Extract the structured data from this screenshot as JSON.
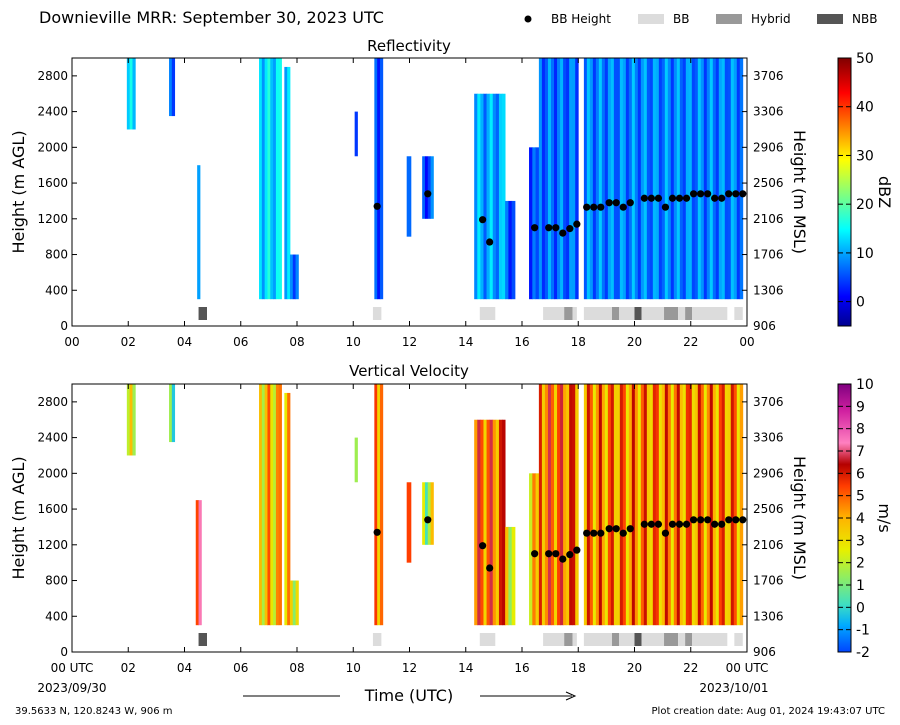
{
  "header": {
    "title": "Downieville MRR:  September 30, 2023 UTC",
    "legend": [
      {
        "label": "BB Height",
        "kind": "dot",
        "color": "#000000"
      },
      {
        "label": "BB",
        "kind": "box",
        "color": "#dcdcdc"
      },
      {
        "label": "Hybrid",
        "kind": "box",
        "color": "#999999"
      },
      {
        "label": "NBB",
        "kind": "box",
        "color": "#555555"
      }
    ]
  },
  "footer": {
    "location": "39.5633 N, 120.8243 W, 906 m",
    "creation": "Plot creation date: Aug 01, 2024 19:43:07 UTC",
    "start_date": "2023/09/30",
    "end_date": "2023/10/01"
  },
  "chart_data": [
    {
      "type": "heatmap",
      "title": "Reflectivity",
      "xlabel": "Time (UTC)",
      "ylabel": "Height (m AGL)",
      "y2label": "Height (m MSL)",
      "xlim": [
        0,
        24
      ],
      "ylim": [
        0,
        3000
      ],
      "x_ticks": [
        "00",
        "02",
        "04",
        "06",
        "08",
        "10",
        "12",
        "14",
        "16",
        "18",
        "20",
        "22",
        "00"
      ],
      "y_ticks": [
        0,
        400,
        800,
        1200,
        1600,
        2000,
        2400,
        2800
      ],
      "y2_ticks": [
        906,
        1306,
        1706,
        2106,
        2506,
        2906,
        3306,
        3706
      ],
      "colorbar": {
        "label": "dBZ",
        "range": [
          -5,
          50
        ],
        "ticks": [
          0,
          10,
          20,
          30,
          40,
          50
        ]
      },
      "echo_segments": [
        {
          "t0": 1.95,
          "t1": 2.25,
          "ybot": 2200,
          "ytop": 3000,
          "val": 12
        },
        {
          "t0": 3.45,
          "t1": 3.65,
          "ybot": 2350,
          "ytop": 3000,
          "val": 8
        },
        {
          "t0": 4.45,
          "t1": 4.55,
          "ybot": 300,
          "ytop": 1800,
          "val": 10
        },
        {
          "t0": 6.65,
          "t1": 7.45,
          "ybot": 300,
          "ytop": 3000,
          "val": 13
        },
        {
          "t0": 7.55,
          "t1": 7.75,
          "ybot": 300,
          "ytop": 2900,
          "val": 10
        },
        {
          "t0": 7.75,
          "t1": 8.05,
          "ybot": 300,
          "ytop": 800,
          "val": 8
        },
        {
          "t0": 10.05,
          "t1": 10.15,
          "ybot": 1900,
          "ytop": 2400,
          "val": 5
        },
        {
          "t0": 10.75,
          "t1": 11.05,
          "ybot": 300,
          "ytop": 3000,
          "val": 6
        },
        {
          "t0": 11.9,
          "t1": 12.05,
          "ybot": 1000,
          "ytop": 1900,
          "val": 8
        },
        {
          "t0": 12.45,
          "t1": 12.85,
          "ybot": 1200,
          "ytop": 1900,
          "val": 5
        },
        {
          "t0": 14.3,
          "t1": 15.4,
          "ybot": 300,
          "ytop": 2600,
          "val": 10
        },
        {
          "t0": 15.4,
          "t1": 15.75,
          "ybot": 300,
          "ytop": 1400,
          "val": 6
        },
        {
          "t0": 16.25,
          "t1": 16.6,
          "ybot": 300,
          "ytop": 2000,
          "val": 4
        },
        {
          "t0": 16.6,
          "t1": 18.0,
          "ybot": 300,
          "ytop": 3000,
          "val": 7
        },
        {
          "t0": 18.2,
          "t1": 23.85,
          "ybot": 300,
          "ytop": 3000,
          "val": 8
        }
      ],
      "bb_height": {
        "time": [
          10.85,
          12.65,
          14.6,
          14.85,
          16.45,
          16.95,
          17.2,
          17.45,
          17.7,
          17.95,
          18.3,
          18.55,
          18.8,
          19.1,
          19.35,
          19.6,
          19.85,
          20.35,
          20.6,
          20.85,
          21.1,
          21.35,
          21.6,
          21.85,
          22.1,
          22.35,
          22.6,
          22.85,
          23.1,
          23.35,
          23.6,
          23.85
        ],
        "height": [
          1340,
          1480,
          1190,
          940,
          1100,
          1100,
          1100,
          1040,
          1090,
          1140,
          1330,
          1330,
          1330,
          1380,
          1380,
          1330,
          1380,
          1430,
          1430,
          1430,
          1330,
          1430,
          1430,
          1430,
          1480,
          1480,
          1480,
          1430,
          1430,
          1480,
          1480,
          1480
        ]
      },
      "bb_type_bar": [
        {
          "t0": 4.5,
          "t1": 4.8,
          "type": "NBB"
        },
        {
          "t0": 10.7,
          "t1": 11.0,
          "type": "BB"
        },
        {
          "t0": 14.5,
          "t1": 15.05,
          "type": "BB"
        },
        {
          "t0": 16.75,
          "t1": 17.5,
          "type": "BB"
        },
        {
          "t0": 17.5,
          "t1": 17.8,
          "type": "Hybrid"
        },
        {
          "t0": 17.8,
          "t1": 17.95,
          "type": "BB"
        },
        {
          "t0": 18.2,
          "t1": 19.2,
          "type": "BB"
        },
        {
          "t0": 19.2,
          "t1": 19.45,
          "type": "Hybrid"
        },
        {
          "t0": 19.45,
          "t1": 20.0,
          "type": "BB"
        },
        {
          "t0": 20.0,
          "t1": 20.25,
          "type": "NBB"
        },
        {
          "t0": 20.25,
          "t1": 21.05,
          "type": "BB"
        },
        {
          "t0": 21.05,
          "t1": 21.55,
          "type": "Hybrid"
        },
        {
          "t0": 21.55,
          "t1": 21.8,
          "type": "BB"
        },
        {
          "t0": 21.8,
          "t1": 22.05,
          "type": "Hybrid"
        },
        {
          "t0": 22.05,
          "t1": 23.3,
          "type": "BB"
        },
        {
          "t0": 23.55,
          "t1": 23.85,
          "type": "BB"
        }
      ]
    },
    {
      "type": "heatmap",
      "title": "Vertical Velocity",
      "xlabel": "Time (UTC)",
      "ylabel": "Height (m AGL)",
      "y2label": "Height (m MSL)",
      "xlim": [
        0,
        24
      ],
      "ylim": [
        0,
        3000
      ],
      "x_ticks": [
        "00 UTC",
        "02",
        "04",
        "06",
        "08",
        "10",
        "12",
        "14",
        "16",
        "18",
        "20",
        "22",
        "00 UTC"
      ],
      "y_ticks": [
        0,
        400,
        800,
        1200,
        1600,
        2000,
        2400,
        2800
      ],
      "y2_ticks": [
        906,
        1306,
        1706,
        2106,
        2506,
        2906,
        3306,
        3706
      ],
      "colorbar": {
        "label": "m/s",
        "range": [
          -2,
          10
        ],
        "ticks": [
          -2,
          -1,
          0,
          1,
          2,
          3,
          4,
          5,
          6,
          7,
          8,
          9,
          10
        ]
      },
      "echo_segments": [
        {
          "t0": 1.95,
          "t1": 2.25,
          "ybot": 2200,
          "ytop": 3000,
          "val": 2
        },
        {
          "t0": 3.45,
          "t1": 3.65,
          "ybot": 2350,
          "ytop": 3000,
          "val": 1.5
        },
        {
          "t0": 4.4,
          "t1": 4.6,
          "ybot": 300,
          "ytop": 1700,
          "val": 5.5
        },
        {
          "t0": 6.65,
          "t1": 7.45,
          "ybot": 300,
          "ytop": 3000,
          "val": 3.5
        },
        {
          "t0": 7.55,
          "t1": 7.75,
          "ybot": 300,
          "ytop": 2900,
          "val": 3
        },
        {
          "t0": 7.75,
          "t1": 8.05,
          "ybot": 300,
          "ytop": 800,
          "val": 3
        },
        {
          "t0": 10.05,
          "t1": 10.15,
          "ybot": 1900,
          "ytop": 2400,
          "val": 2
        },
        {
          "t0": 10.75,
          "t1": 11.05,
          "ybot": 300,
          "ytop": 3000,
          "val": 5
        },
        {
          "t0": 11.9,
          "t1": 12.05,
          "ybot": 1000,
          "ytop": 1900,
          "val": 6
        },
        {
          "t0": 12.45,
          "t1": 12.85,
          "ybot": 1200,
          "ytop": 1900,
          "val": 2
        },
        {
          "t0": 14.3,
          "t1": 15.4,
          "ybot": 300,
          "ytop": 2600,
          "val": 5
        },
        {
          "t0": 15.4,
          "t1": 15.75,
          "ybot": 300,
          "ytop": 1400,
          "val": 3
        },
        {
          "t0": 16.25,
          "t1": 16.6,
          "ybot": 300,
          "ytop": 2000,
          "val": 3
        },
        {
          "t0": 16.6,
          "t1": 18.0,
          "ybot": 300,
          "ytop": 3000,
          "val": 5
        },
        {
          "t0": 18.2,
          "t1": 23.85,
          "ybot": 300,
          "ytop": 3000,
          "val": 4.5
        }
      ],
      "bb_height": {
        "time": [
          10.85,
          12.65,
          14.6,
          14.85,
          16.45,
          16.95,
          17.2,
          17.45,
          17.7,
          17.95,
          18.3,
          18.55,
          18.8,
          19.1,
          19.35,
          19.6,
          19.85,
          20.35,
          20.6,
          20.85,
          21.1,
          21.35,
          21.6,
          21.85,
          22.1,
          22.35,
          22.6,
          22.85,
          23.1,
          23.35,
          23.6,
          23.85
        ],
        "height": [
          1340,
          1480,
          1190,
          940,
          1100,
          1100,
          1100,
          1040,
          1090,
          1140,
          1330,
          1330,
          1330,
          1380,
          1380,
          1330,
          1380,
          1430,
          1430,
          1430,
          1330,
          1430,
          1430,
          1430,
          1480,
          1480,
          1480,
          1430,
          1430,
          1480,
          1480,
          1480
        ]
      },
      "bb_type_bar": [
        {
          "t0": 4.5,
          "t1": 4.8,
          "type": "NBB"
        },
        {
          "t0": 10.7,
          "t1": 11.0,
          "type": "BB"
        },
        {
          "t0": 14.5,
          "t1": 15.05,
          "type": "BB"
        },
        {
          "t0": 16.75,
          "t1": 17.5,
          "type": "BB"
        },
        {
          "t0": 17.5,
          "t1": 17.8,
          "type": "Hybrid"
        },
        {
          "t0": 17.8,
          "t1": 17.95,
          "type": "BB"
        },
        {
          "t0": 18.2,
          "t1": 19.2,
          "type": "BB"
        },
        {
          "t0": 19.2,
          "t1": 19.45,
          "type": "Hybrid"
        },
        {
          "t0": 19.45,
          "t1": 20.0,
          "type": "BB"
        },
        {
          "t0": 20.0,
          "t1": 20.25,
          "type": "NBB"
        },
        {
          "t0": 20.25,
          "t1": 21.05,
          "type": "BB"
        },
        {
          "t0": 21.05,
          "t1": 21.55,
          "type": "Hybrid"
        },
        {
          "t0": 21.55,
          "t1": 21.8,
          "type": "BB"
        },
        {
          "t0": 21.8,
          "t1": 22.05,
          "type": "Hybrid"
        },
        {
          "t0": 22.05,
          "t1": 23.3,
          "type": "BB"
        },
        {
          "t0": 23.55,
          "t1": 23.85,
          "type": "BB"
        }
      ]
    }
  ]
}
